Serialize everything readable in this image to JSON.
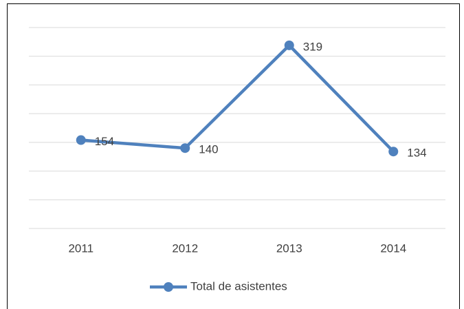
{
  "chart_data": {
    "type": "line",
    "categories": [
      "2011",
      "2012",
      "2013",
      "2014"
    ],
    "series": [
      {
        "name": "Total de asistentes",
        "color": "#4f81bd",
        "values": [
          154,
          140,
          319,
          134
        ]
      }
    ],
    "ylim": [
      0,
      350
    ],
    "yticks": [
      0,
      50,
      100,
      150,
      200,
      250,
      300,
      350
    ],
    "grid": true,
    "legend": "bottom"
  }
}
